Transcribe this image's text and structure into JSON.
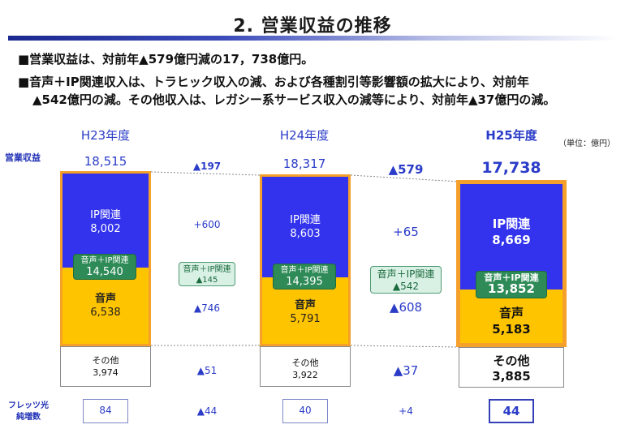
{
  "title": "2. 営業収益の推移",
  "bullets": [
    "■営業収益は、対前年▲579億円減の17，738億円。",
    "■音声＋IP関連収入は、トラヒック収入の減、および各種割引等影響額の拡大により、対前年",
    "▲542億円の減。その他収入は、レガシー系サービス収入の減等により、対前年▲37億円の減。"
  ],
  "unit_label": "（単位：億円）",
  "row_labels": {
    "revenue": "営業収益",
    "flets": "フレッツ光\n純増数"
  },
  "colors": {
    "ip": "#3333ee",
    "voice": "#ffc400",
    "border": "#f5a02a",
    "badge": "#2e8b57",
    "accent": "#2b3cc8"
  },
  "chart_data": {
    "type": "bar",
    "stacked": true,
    "title": "2. 営業収益の推移",
    "categories": [
      "H23年度",
      "H24年度",
      "H25年度"
    ],
    "totals": [
      "18,515",
      "18,317",
      "17,738"
    ],
    "series": [
      {
        "name": "IP関連",
        "values": [
          8002,
          8603,
          8669
        ],
        "labels": [
          "8,002",
          "8,603",
          "8,669"
        ]
      },
      {
        "name": "音声",
        "values": [
          6538,
          5791,
          5183
        ],
        "labels": [
          "6,538",
          "5,791",
          "5,183"
        ]
      },
      {
        "name": "その他",
        "values": [
          3974,
          3922,
          3885
        ],
        "labels": [
          "3,974",
          "3,922",
          "3,885"
        ]
      }
    ],
    "combined": {
      "name": "音声＋IP関連",
      "labels": [
        "14,540",
        "14,395",
        "13,852"
      ]
    },
    "changes": [
      {
        "total": "▲197",
        "ip": "+600",
        "combined": "▲145",
        "voice": "▲746",
        "other": "▲51",
        "flets": "▲44"
      },
      {
        "total": "▲579",
        "ip": "+65",
        "combined": "▲542",
        "voice": "▲608",
        "other": "▲37",
        "flets": "+4"
      }
    ],
    "flets_net_increase": [
      "84",
      "40",
      "44"
    ],
    "highlight_category": "H25年度"
  }
}
